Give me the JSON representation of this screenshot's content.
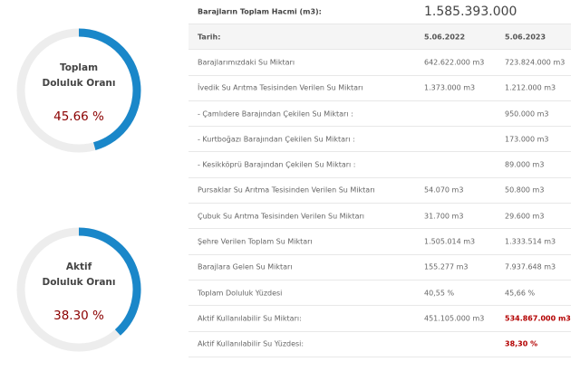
{
  "gauges": [
    {
      "title": "Toplam",
      "subtitle": "Doluluk Oranı",
      "value": 45.66,
      "value_label": "45.66 %",
      "lim": [
        0,
        100
      ],
      "color": "#1a87c9"
    },
    {
      "title": "Aktif",
      "subtitle": "Doluluk Oranı",
      "value": 38.3,
      "value_label": "38.30 %",
      "lim": [
        0,
        100
      ],
      "color": "#1a87c9"
    }
  ],
  "table": {
    "total_label": "Barajların Toplam Hacmi (m3):",
    "total_value": "1.585.393.000",
    "header": [
      "Tarih:",
      "5.06.2022",
      "5.06.2023"
    ],
    "highlight_color": "#b30000",
    "rows": [
      [
        "Barajlarımızdaki Su Miktarı",
        "642.622.000 m3",
        "723.824.000 m3"
      ],
      [
        "İvedik Su Arıtma Tesisinden Verilen Su Miktarı",
        "1.373.000 m3",
        "1.212.000 m3"
      ],
      [
        "- Çamlıdere Barajından Çekilen Su Miktarı :",
        null,
        "950.000 m3"
      ],
      [
        "- Kurtboğazı Barajından Çekilen Su Miktarı :",
        null,
        "173.000 m3"
      ],
      [
        "- Kesikköprü Barajından Çekilen Su Miktarı :",
        null,
        "89.000 m3"
      ],
      [
        "Pursaklar Su Arıtma Tesisinden Verilen Su Miktarı",
        "54.070 m3",
        "50.800 m3"
      ],
      [
        "Çubuk Su Arıtma Tesisinden Verilen Su Miktarı",
        "31.700 m3",
        "29.600 m3"
      ],
      [
        "Şehre Verilen Toplam Su Miktarı",
        "1.505.014 m3",
        "1.333.514 m3"
      ],
      [
        "Barajlara Gelen Su Miktarı",
        "155.277 m3",
        "7.937.648 m3"
      ],
      [
        "Toplam Doluluk Yüzdesi",
        "40,55 %",
        "45,66 %"
      ],
      [
        "Aktif Kullanılabilir Su Miktarı:",
        "451.105.000 m3",
        {
          "text": "534.867.000 m3",
          "highlight": true
        }
      ],
      [
        "Aktif Kullanılabilir Su Yüzdesi:",
        null,
        {
          "text": "38,30 %",
          "highlight": true
        }
      ]
    ]
  }
}
